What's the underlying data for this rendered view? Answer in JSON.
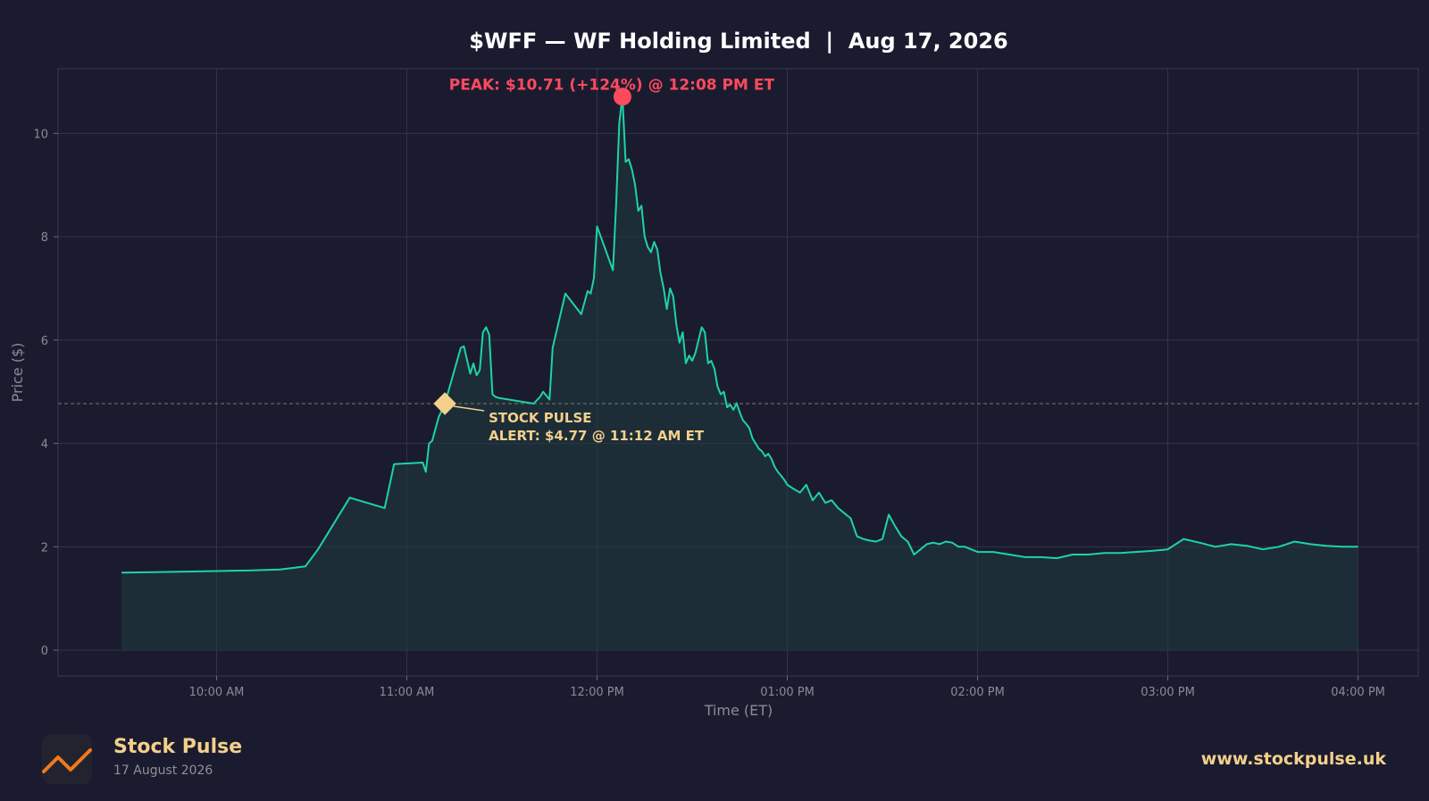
{
  "chart_data": {
    "type": "area",
    "title": "$WFF — WF Holding Limited  |  Aug 17, 2026",
    "xlabel": "Time (ET)",
    "ylabel": "Price ($)",
    "ylim": [
      -0.5,
      11.25
    ],
    "xlim": [
      "09:10",
      "16:19"
    ],
    "yticks": [
      0,
      2,
      4,
      6,
      8,
      10
    ],
    "xticks": [
      {
        "t": "10:00",
        "label": "10:00 AM"
      },
      {
        "t": "11:00",
        "label": "11:00 AM"
      },
      {
        "t": "12:00",
        "label": "12:00 PM"
      },
      {
        "t": "13:00",
        "label": "01:00 PM"
      },
      {
        "t": "14:00",
        "label": "02:00 PM"
      },
      {
        "t": "15:00",
        "label": "03:00 PM"
      },
      {
        "t": "16:00",
        "label": "04:00 PM"
      }
    ],
    "grid": true,
    "x": [
      "09:30",
      "09:40",
      "09:50",
      "10:00",
      "10:10",
      "10:20",
      "10:28",
      "10:32",
      "10:42",
      "10:53",
      "10:56",
      "11:05",
      "11:06",
      "11:07",
      "11:08",
      "11:10",
      "11:12",
      "11:17",
      "11:18",
      "11:20",
      "11:21",
      "11:22",
      "11:23",
      "11:24",
      "11:25",
      "11:26",
      "11:27",
      "11:28",
      "11:29",
      "11:40",
      "11:42",
      "11:43",
      "11:45",
      "11:46",
      "11:50",
      "11:55",
      "11:57",
      "11:58",
      "11:59",
      "12:00",
      "12:05",
      "12:06",
      "12:07",
      "12:08",
      "12:09",
      "12:10",
      "12:11",
      "12:12",
      "12:13",
      "12:14",
      "12:15",
      "12:16",
      "12:17",
      "12:18",
      "12:19",
      "12:20",
      "12:21",
      "12:22",
      "12:23",
      "12:24",
      "12:25",
      "12:26",
      "12:27",
      "12:28",
      "12:29",
      "12:30",
      "12:31",
      "12:32",
      "12:33",
      "12:34",
      "12:35",
      "12:36",
      "12:37",
      "12:38",
      "12:39",
      "12:40",
      "12:41",
      "12:42",
      "12:43",
      "12:44",
      "12:45",
      "12:46",
      "12:47",
      "12:48",
      "12:49",
      "12:50",
      "12:51",
      "12:52",
      "12:53",
      "12:54",
      "12:55",
      "12:56",
      "12:57",
      "12:58",
      "12:59",
      "13:00",
      "13:02",
      "13:04",
      "13:06",
      "13:08",
      "13:10",
      "13:12",
      "13:14",
      "13:16",
      "13:18",
      "13:20",
      "13:22",
      "13:24",
      "13:26",
      "13:28",
      "13:30",
      "13:32",
      "13:34",
      "13:36",
      "13:38",
      "13:40",
      "13:42",
      "13:44",
      "13:46",
      "13:48",
      "13:50",
      "13:52",
      "13:54",
      "13:56",
      "13:58",
      "14:00",
      "14:05",
      "14:10",
      "14:15",
      "14:20",
      "14:25",
      "14:30",
      "14:35",
      "14:40",
      "14:45",
      "14:50",
      "14:55",
      "15:00",
      "15:05",
      "15:10",
      "15:15",
      "15:20",
      "15:25",
      "15:30",
      "15:35",
      "15:40",
      "15:45",
      "15:50",
      "15:55",
      "16:00"
    ],
    "series": [
      {
        "color": "#1ed3a6",
        "values": [
          1.5,
          1.51,
          1.52,
          1.53,
          1.54,
          1.56,
          1.62,
          1.95,
          2.95,
          2.75,
          3.6,
          3.63,
          3.45,
          4.0,
          4.05,
          4.5,
          4.77,
          5.85,
          5.88,
          5.35,
          5.55,
          5.32,
          5.42,
          6.15,
          6.25,
          6.1,
          4.95,
          4.9,
          4.88,
          4.77,
          4.9,
          5.0,
          4.85,
          5.85,
          6.9,
          6.5,
          6.95,
          6.9,
          7.2,
          8.2,
          7.35,
          8.6,
          10.2,
          10.71,
          9.45,
          9.5,
          9.3,
          9.0,
          8.5,
          8.6,
          8.0,
          7.8,
          7.7,
          7.9,
          7.75,
          7.3,
          7.0,
          6.6,
          7.0,
          6.85,
          6.3,
          5.95,
          6.15,
          5.55,
          5.7,
          5.6,
          5.75,
          6.0,
          6.25,
          6.15,
          5.55,
          5.6,
          5.45,
          5.1,
          4.95,
          5.0,
          4.7,
          4.75,
          4.65,
          4.78,
          4.6,
          4.45,
          4.38,
          4.3,
          4.1,
          4.0,
          3.9,
          3.85,
          3.75,
          3.8,
          3.7,
          3.55,
          3.45,
          3.38,
          3.3,
          3.2,
          3.12,
          3.05,
          3.2,
          2.9,
          3.05,
          2.85,
          2.9,
          2.75,
          2.65,
          2.55,
          2.2,
          2.15,
          2.12,
          2.1,
          2.15,
          2.62,
          2.4,
          2.2,
          2.1,
          1.85,
          1.95,
          2.05,
          2.08,
          2.05,
          2.1,
          2.08,
          2.0,
          2.0,
          1.95,
          1.9,
          1.9,
          1.85,
          1.8,
          1.8,
          1.78,
          1.85,
          1.85,
          1.88,
          1.88,
          1.9,
          1.92,
          1.95,
          2.15,
          2.08,
          2.0,
          2.05,
          2.02,
          1.95,
          2.0,
          2.1,
          2.05,
          2.02,
          2.0,
          2.0
        ]
      }
    ],
    "annotations": [
      {
        "kind": "peak",
        "t": "12:08",
        "price": 10.71,
        "label": "PEAK: $10.71 (+124%) @ 12:08 PM ET",
        "color": "#ff4a5e"
      },
      {
        "kind": "alert",
        "t": "11:12",
        "price": 4.77,
        "line1": "STOCK PULSE",
        "line2": "ALERT: $4.77 @ 11:12 AM ET",
        "color": "#f3d08b"
      }
    ],
    "reference_line": {
      "price": 4.77,
      "style": "dashed"
    }
  },
  "footer": {
    "brand": "Stock Pulse",
    "date": "17 August 2026",
    "url": "www.stockpulse.uk",
    "logo_icon": "chart-trend-icon"
  },
  "colors": {
    "background": "#1b1b2f",
    "line": "#1ed3a6",
    "fill": "#1e3a3e",
    "grid": "#3a3a4e",
    "peak": "#ff4a5e",
    "accent": "#f3d08b",
    "text": "#ffffff",
    "muted": "#9a9aa6"
  }
}
